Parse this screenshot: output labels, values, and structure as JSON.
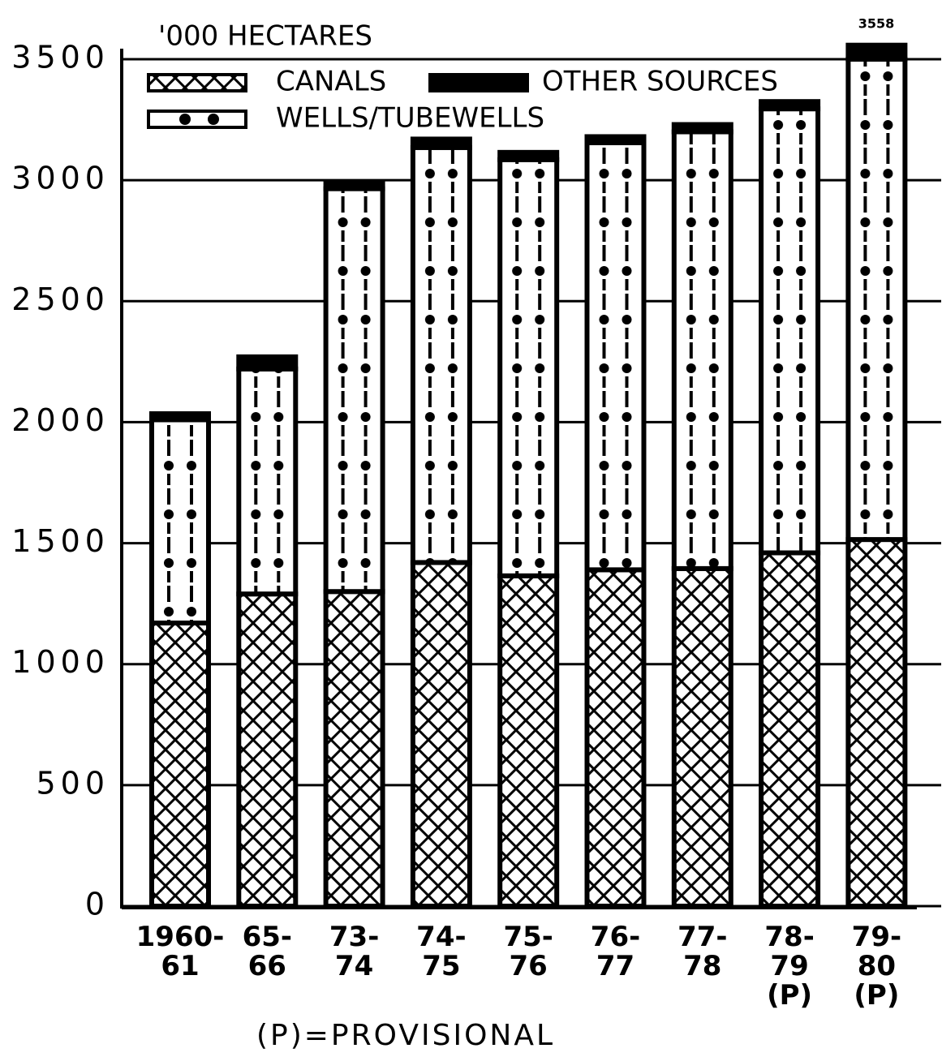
{
  "chart_data": {
    "type": "stacked_bar",
    "title": "'000 HECTARES",
    "categories": [
      "1960-\n61",
      "65-\n66",
      "73-\n74",
      "74-\n75",
      "75-\n76",
      "76-\n77",
      "77-\n78",
      "78-\n79\n(P)",
      "79-\n80\n(P)"
    ],
    "series": [
      {
        "name": "CANALS",
        "color": "#000000",
        "pattern": "crosshatch",
        "values": [
          1170,
          1290,
          1300,
          1420,
          1365,
          1390,
          1395,
          1460,
          1515
        ]
      },
      {
        "name": "WELLS/TUBEWELLS",
        "color": "#000000",
        "pattern": "dots",
        "values": [
          840,
          930,
          1665,
          1715,
          1720,
          1765,
          1805,
          1835,
          1985
        ]
      },
      {
        "name": "OTHER SOURCES",
        "color": "#000000",
        "pattern": "solid",
        "values": [
          25,
          50,
          25,
          35,
          30,
          25,
          30,
          30,
          58
        ]
      }
    ],
    "annotations": [
      "3558",
      "(P)=PROVISIONAL"
    ],
    "ylim": [
      0,
      3500
    ],
    "yticks": [
      0,
      500,
      1000,
      1500,
      2000,
      2500,
      3000,
      3500
    ],
    "grid": true
  }
}
